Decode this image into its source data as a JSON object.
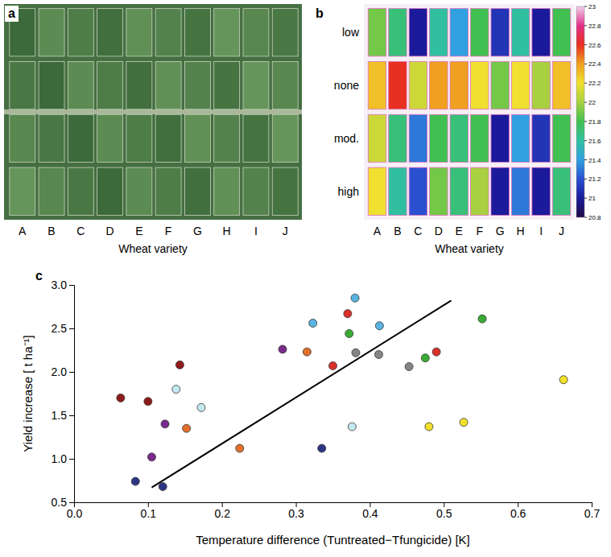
{
  "chart_data": [
    {
      "type": "image",
      "panel_label": "a",
      "categories": [
        "A",
        "B",
        "C",
        "D",
        "E",
        "F",
        "G",
        "H",
        "I",
        "J"
      ],
      "x_label": "Wheat variety"
    },
    {
      "type": "heatmap",
      "panel_label": "b",
      "categories": [
        "A",
        "B",
        "C",
        "D",
        "E",
        "F",
        "G",
        "H",
        "I",
        "J"
      ],
      "rows": [
        "low",
        "none",
        "mod.",
        "high"
      ],
      "x_label": "Wheat variety",
      "values": [
        [
          21.9,
          21.7,
          21.0,
          21.6,
          21.4,
          21.8,
          21.1,
          21.6,
          21.0,
          21.8
        ],
        [
          22.3,
          22.6,
          22.1,
          22.4,
          22.4,
          22.2,
          21.9,
          22.2,
          22.0,
          22.3
        ],
        [
          22.1,
          21.7,
          21.3,
          21.8,
          21.7,
          21.8,
          21.0,
          21.4,
          21.1,
          21.8
        ],
        [
          22.2,
          21.6,
          21.2,
          21.9,
          21.7,
          22.0,
          21.0,
          21.3,
          21.0,
          21.7
        ]
      ],
      "colorbar_range": [
        20.8,
        23
      ],
      "colorbar_ticks": [
        23,
        22.8,
        22.6,
        22.4,
        22.2,
        22,
        21.8,
        21.6,
        21.4,
        21.2,
        21,
        20.8
      ]
    },
    {
      "type": "scatter",
      "panel_label": "c",
      "x_label": "Temperature difference (Tuntreated−Tfungicide) [K]",
      "y_label": "Yield increase [ t ha⁻¹]",
      "xlim": [
        0,
        0.7
      ],
      "xticks": [
        {
          "value": 0,
          "label": "0.0"
        },
        0.1,
        0.2,
        0.3,
        0.4,
        0.5,
        0.6,
        0.7
      ],
      "ylim": [
        0.5,
        3.0
      ],
      "yticks": [
        0.5,
        {
          "value": 1.0,
          "label": "1.0"
        },
        1.5,
        {
          "value": 2.0,
          "label": "2.0"
        },
        2.5,
        {
          "value": 3.0,
          "label": "3.0"
        }
      ],
      "series": [
        {
          "type": "scatter",
          "marker": "circle",
          "x": [
            0.063,
            0.1,
            0.143,
            0.083,
            0.12,
            0.335,
            0.105,
            0.123,
            0.282,
            0.138,
            0.172,
            0.376,
            0.152,
            0.224,
            0.315,
            0.323,
            0.38,
            0.413,
            0.37,
            0.35,
            0.49,
            0.372,
            0.475,
            0.552,
            0.381,
            0.412,
            0.453,
            0.48,
            0.527,
            0.662
          ],
          "values": [
            1.7,
            1.66,
            2.08,
            0.74,
            0.68,
            1.12,
            1.02,
            1.4,
            2.26,
            1.8,
            1.59,
            1.37,
            1.35,
            1.12,
            2.23,
            2.56,
            2.85,
            2.53,
            2.67,
            2.07,
            2.23,
            2.44,
            2.16,
            2.61,
            2.22,
            2.2,
            2.06,
            1.37,
            1.42,
            1.91
          ],
          "colors": [
            "#8e1b1b",
            "#8e1b1b",
            "#8e1b1b",
            "#2d3585",
            "#2d3585",
            "#2d3585",
            "#7a2a8c",
            "#7a2a8c",
            "#7a2a8c",
            "#c3e9ee",
            "#c3e9ee",
            "#c3e9ee",
            "#e2702c",
            "#e2702c",
            "#e2702c",
            "#5ab4e2",
            "#5ab4e2",
            "#5ab4e2",
            "#d9302a",
            "#d9302a",
            "#d9302a",
            "#3aaa35",
            "#3aaa35",
            "#3aaa35",
            "#858585",
            "#858585",
            "#858585",
            "#f2e12b",
            "#f2e12b",
            "#f2e12b"
          ]
        },
        {
          "type": "line",
          "line_style": "solid",
          "color": "#000000",
          "x": [
            0.105,
            0.51
          ],
          "values": [
            0.67,
            2.82
          ]
        }
      ]
    }
  ]
}
